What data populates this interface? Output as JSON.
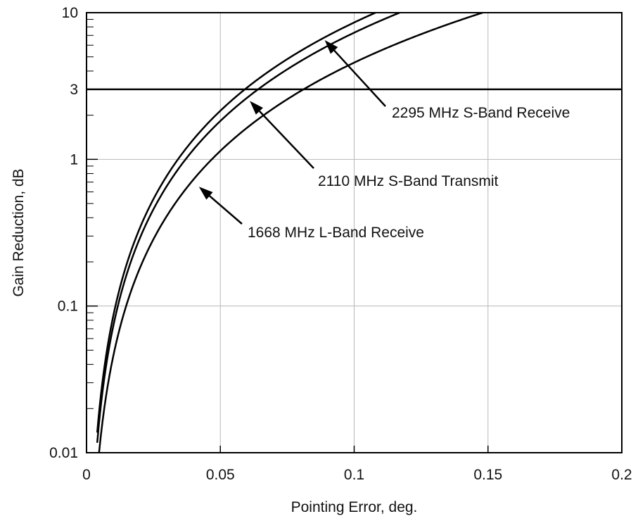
{
  "chart_data": {
    "type": "line",
    "title": "",
    "xlabel": "Pointing Error, deg.",
    "ylabel": "Gain Reduction, dB",
    "xlim": [
      0,
      0.2
    ],
    "ylim": [
      0.01,
      10
    ],
    "yscale": "log",
    "grid": true,
    "x_ticks": [
      0,
      0.05,
      0.1,
      0.15,
      0.2
    ],
    "x_tick_labels": [
      "0",
      "0.05",
      "0.1",
      "0.15",
      "0.2"
    ],
    "y_ticks": [
      0.01,
      0.1,
      1,
      3,
      10
    ],
    "y_tick_labels": [
      "0.01",
      "0.1",
      "1",
      "3",
      "10"
    ],
    "reference_line": {
      "y": 3
    },
    "series": [
      {
        "name": "2295 MHz S-Band Receive",
        "x_at_10dB": 0.108,
        "x_at_0.01dB": 0.004
      },
      {
        "name": "2110 MHz S-Band Transmit",
        "x_at_10dB": 0.117,
        "x_at_0.01dB": 0.004
      },
      {
        "name": "1668 MHz L-Band Receive",
        "x_at_10dB": 0.148,
        "x_at_0.01dB": 0.004
      }
    ],
    "annotations": [
      {
        "text": "2295 MHz S-Band Receive",
        "points_to": {
          "x": 0.089,
          "y": 6.5
        }
      },
      {
        "text": "2110 MHz S-Band Transmit",
        "points_to": {
          "x": 0.061,
          "y": 2.5
        }
      },
      {
        "text": "1668 MHz L-Band Receive",
        "points_to": {
          "x": 0.042,
          "y": 0.65
        }
      }
    ]
  }
}
